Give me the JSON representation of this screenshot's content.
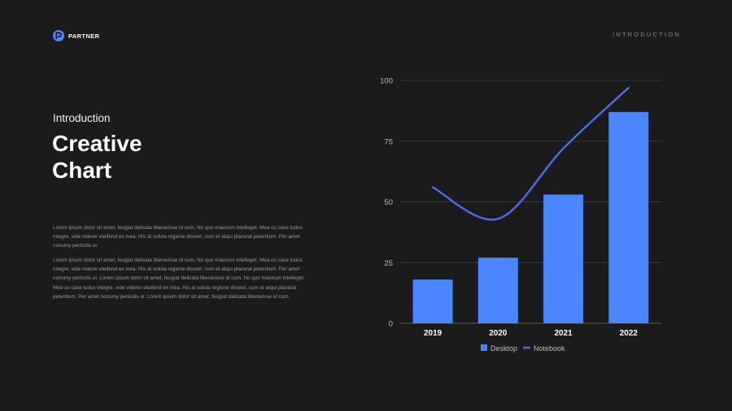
{
  "brand": {
    "name": "PARTNER",
    "accent": "#4a86ff"
  },
  "header": {
    "section": "INTRODUCTION"
  },
  "intro": {
    "eyebrow": "Introduction",
    "title_line1": "Creative",
    "title_line2": "Chart",
    "paragraphs": [
      "Lorem ipsum dolor sit amet, feugiat delicata liberavisse id cum. No quo maiorum intelleget. Mea cu case ludus integre, vide viderer eleifend ex mea. His at soluta regione diceret, cum et atqui placerat petentium. Per amet nonumy periculis ei.",
      "Lorem ipsum dolor sit amet, feugiat delicata liberavisse id cum. No quo maiorum intelleget. Mea cu case ludus integre, vide viderer eleifend ex mea. His at soluta regione diceret, cum et atqui placerat petentium. Per amet nonumy periculis ei. Lorem ipsum dolor sit amet, feugiat delicata liberavisse id cum. No quo maiorum intelleget. Mea cu case ludus integre, vide viderer eleifend ex mea. His at soluta regione diceret, cum et atqui placerat petentium. Per amet nonumy periculis ei. Lorem ipsum dolor sit amet, feugiat delicata liberavisse id cum."
    ]
  },
  "chart_data": {
    "type": "bar",
    "categories": [
      "2019",
      "2020",
      "2021",
      "2022"
    ],
    "series": [
      {
        "name": "Desktop",
        "kind": "bar",
        "values": [
          18,
          27,
          53,
          87
        ],
        "color": "#4a86ff"
      },
      {
        "name": "Notebook",
        "kind": "line",
        "values": [
          56,
          43,
          72,
          97
        ],
        "color": "#4a6cf0"
      }
    ],
    "title": "",
    "xlabel": "",
    "ylabel": "",
    "ylim": [
      0,
      100
    ],
    "yticks": [
      0,
      25,
      50,
      75,
      100
    ],
    "grid": true,
    "legend_position": "bottom"
  }
}
